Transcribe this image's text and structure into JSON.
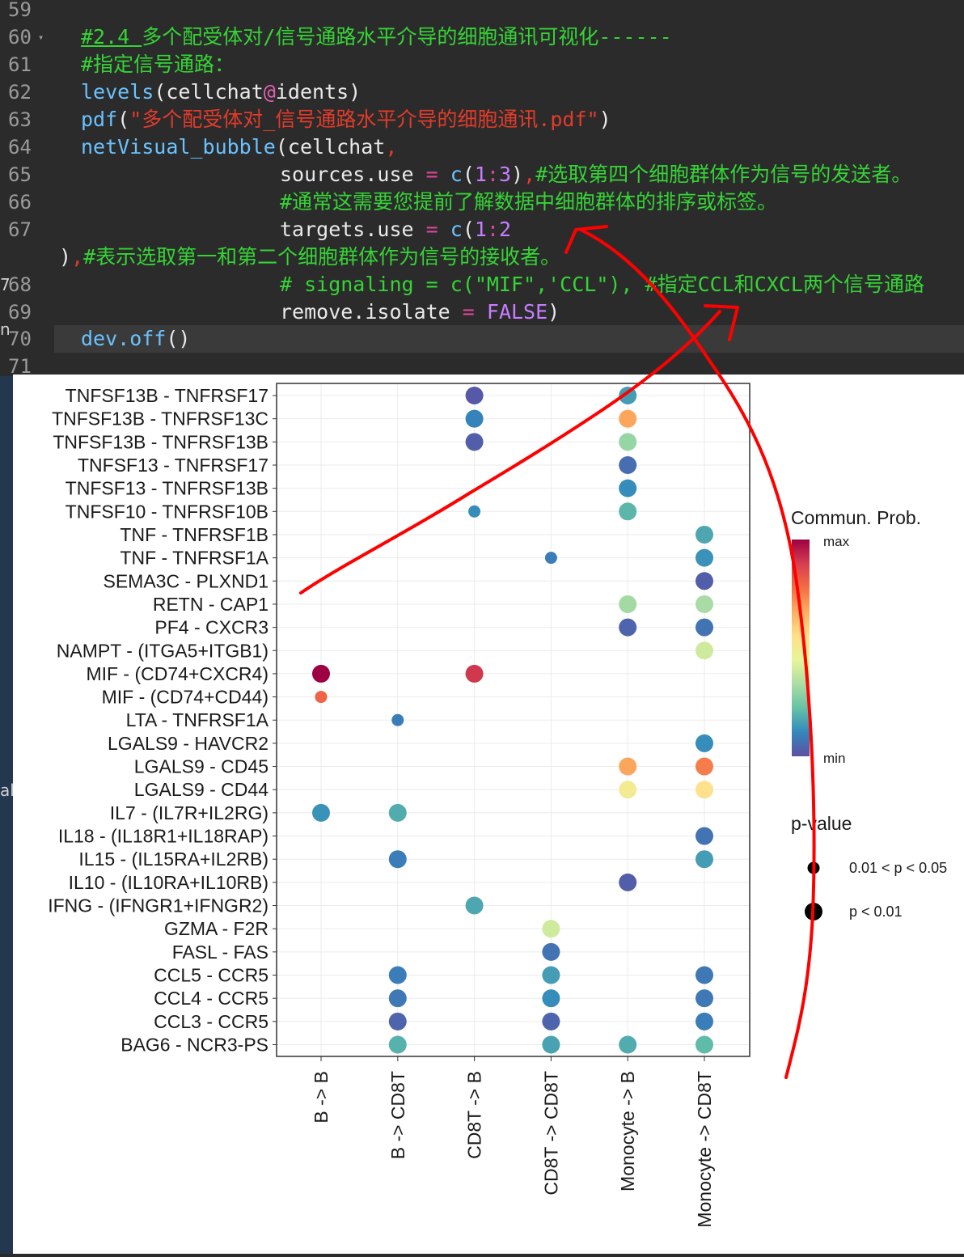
{
  "editor": {
    "lines": [
      {
        "num": "59",
        "tokens": []
      },
      {
        "num": "60",
        "fold": true,
        "tokens": [
          {
            "t": "#2.4 ",
            "c": "c-green ul"
          },
          {
            "t": "多个配受体对/信号通路水平介导的细胞通讯可视化------",
            "c": "c-green"
          }
        ]
      },
      {
        "num": "61",
        "tokens": [
          {
            "t": "#指定信号通路：",
            "c": "c-green"
          }
        ]
      },
      {
        "num": "62",
        "tokens": [
          {
            "t": "levels",
            "c": "c-fn"
          },
          {
            "t": "(",
            "c": "c-white"
          },
          {
            "t": "cellchat",
            "c": "c-white"
          },
          {
            "t": "@",
            "c": "c-at"
          },
          {
            "t": "idents",
            "c": "c-white"
          },
          {
            "t": ")",
            "c": "c-white"
          }
        ]
      },
      {
        "num": "63",
        "tokens": [
          {
            "t": "pdf",
            "c": "c-fn"
          },
          {
            "t": "(",
            "c": "c-white"
          },
          {
            "t": "\"多个配受体对_信号通路水平介导的细胞通讯.pdf\"",
            "c": "c-str"
          },
          {
            "t": ")",
            "c": "c-white"
          }
        ]
      },
      {
        "num": "64",
        "tokens": [
          {
            "t": "netVisual_bubble",
            "c": "c-fn"
          },
          {
            "t": "(",
            "c": "c-white"
          },
          {
            "t": "cellchat",
            "c": "c-white"
          },
          {
            "t": ",",
            "c": "c-str"
          }
        ]
      },
      {
        "num": "65",
        "indent": true,
        "tokens": [
          {
            "t": "sources.use ",
            "c": "c-white"
          },
          {
            "t": "=",
            "c": "c-op"
          },
          {
            "t": " ",
            "c": "c-white"
          },
          {
            "t": "c",
            "c": "c-fn"
          },
          {
            "t": "(",
            "c": "c-white"
          },
          {
            "t": "1",
            "c": "c-num"
          },
          {
            "t": ":",
            "c": "c-op"
          },
          {
            "t": "3",
            "c": "c-num"
          },
          {
            "t": ")",
            "c": "c-white"
          },
          {
            "t": ",",
            "c": "c-str"
          },
          {
            "t": "#选取第四个细胞群体作为信号的发送者。",
            "c": "c-green"
          }
        ]
      },
      {
        "num": "66",
        "indent": true,
        "tokens": [
          {
            "t": "#通常这需要您提前了解数据中细胞群体的排序或标签。",
            "c": "c-green"
          }
        ]
      },
      {
        "num": "67",
        "indent": true,
        "tokens": [
          {
            "t": "targets.use ",
            "c": "c-white"
          },
          {
            "t": "=",
            "c": "c-op"
          },
          {
            "t": " ",
            "c": "c-white"
          },
          {
            "t": "c",
            "c": "c-fn"
          },
          {
            "t": "(",
            "c": "c-white"
          },
          {
            "t": "1",
            "c": "c-num"
          },
          {
            "t": ":",
            "c": "c-op"
          },
          {
            "t": "2",
            "c": "c-num"
          }
        ]
      },
      {
        "num": "",
        "wrap": true,
        "tokens": [
          {
            "t": ")",
            "c": "c-white"
          },
          {
            "t": ",",
            "c": "c-str"
          },
          {
            "t": "#表示选取第一和第二个细胞群体作为信号的接收者。",
            "c": "c-green"
          }
        ]
      },
      {
        "num": "68",
        "indent": true,
        "tokens": [
          {
            "t": "# signaling = c(\"MIF\",'CCL\"), #指定CCL和CXCL两个信号通路",
            "c": "c-green"
          }
        ]
      },
      {
        "num": "69",
        "indent": true,
        "tokens": [
          {
            "t": "remove.isolate ",
            "c": "c-white"
          },
          {
            "t": "=",
            "c": "c-op"
          },
          {
            "t": " ",
            "c": "c-white"
          },
          {
            "t": "FALSE",
            "c": "c-num"
          },
          {
            "t": ")",
            "c": "c-white"
          }
        ]
      },
      {
        "num": "70",
        "tokens": [
          {
            "t": "dev.off",
            "c": "c-fn"
          },
          {
            "t": "()",
            "c": "c-white"
          }
        ]
      },
      {
        "num": "71",
        "tokens": []
      }
    ]
  },
  "left_strip_fragments": [
    "7",
    "n",
    "al"
  ],
  "chart_data": {
    "type": "scatter",
    "title": "",
    "xlabel": "",
    "ylabel": "",
    "x_categories": [
      "B -> B",
      "B -> CD8T",
      "CD8T -> B",
      "CD8T -> CD8T",
      "Monocyte -> B",
      "Monocyte -> CD8T"
    ],
    "y_categories": [
      "TNFSF13B - TNFRSF17",
      "TNFSF13B - TNFRSF13C",
      "TNFSF13B - TNFRSF13B",
      "TNFSF13 - TNFRSF17",
      "TNFSF13 - TNFRSF13B",
      "TNFSF10 - TNFRSF10B",
      "TNF - TNFRSF1B",
      "TNF - TNFRSF1A",
      "SEMA3C - PLXND1",
      "RETN - CAP1",
      "PF4 - CXCR3",
      "NAMPT - (ITGA5+ITGB1)",
      "MIF - (CD74+CXCR4)",
      "MIF - (CD74+CD44)",
      "LTA - TNFRSF1A",
      "LGALS9 - HAVCR2",
      "LGALS9 - CD45",
      "LGALS9 - CD44",
      "IL7 - (IL7R+IL2RG)",
      "IL18 - (IL18R1+IL18RAP)",
      "IL15 - (IL15RA+IL2RB)",
      "IL10 - (IL10RA+IL10RB)",
      "IFNG - (IFNGR1+IFNGR2)",
      "GZMA - F2R",
      "FASL - FAS",
      "CCL5 - CCR5",
      "CCL4 - CCR5",
      "CCL3 - CCR5",
      "BAG6 - NCR3-PS"
    ],
    "points": [
      {
        "x": "CD8T -> B",
        "y": "TNFSF13B - TNFRSF17",
        "prob": 0.02,
        "p": "p < 0.01"
      },
      {
        "x": "Monocyte -> B",
        "y": "TNFSF13B - TNFRSF17",
        "prob": 0.15,
        "p": "p < 0.01"
      },
      {
        "x": "CD8T -> B",
        "y": "TNFSF13B - TNFRSF13C",
        "prob": 0.1,
        "p": "p < 0.01"
      },
      {
        "x": "Monocyte -> B",
        "y": "TNFSF13B - TNFRSF13C",
        "prob": 0.68,
        "p": "p < 0.01"
      },
      {
        "x": "CD8T -> B",
        "y": "TNFSF13B - TNFRSF13B",
        "prob": 0.03,
        "p": "p < 0.01"
      },
      {
        "x": "Monocyte -> B",
        "y": "TNFSF13B - TNFRSF13B",
        "prob": 0.3,
        "p": "p < 0.01"
      },
      {
        "x": "Monocyte -> B",
        "y": "TNFSF13 - TNFRSF17",
        "prob": 0.06,
        "p": "p < 0.01"
      },
      {
        "x": "Monocyte -> B",
        "y": "TNFSF13 - TNFRSF13B",
        "prob": 0.12,
        "p": "p < 0.01"
      },
      {
        "x": "CD8T -> B",
        "y": "TNFSF10 - TNFRSF10B",
        "prob": 0.12,
        "p": "0.01 < p < 0.05"
      },
      {
        "x": "Monocyte -> B",
        "y": "TNFSF10 - TNFRSF10B",
        "prob": 0.2,
        "p": "p < 0.01"
      },
      {
        "x": "Monocyte -> CD8T",
        "y": "TNF - TNFRSF1B",
        "prob": 0.17,
        "p": "p < 0.01"
      },
      {
        "x": "CD8T -> CD8T",
        "y": "TNF - TNFRSF1A",
        "prob": 0.09,
        "p": "0.01 < p < 0.05"
      },
      {
        "x": "Monocyte -> CD8T",
        "y": "TNF - TNFRSF1A",
        "prob": 0.13,
        "p": "p < 0.01"
      },
      {
        "x": "Monocyte -> CD8T",
        "y": "SEMA3C - PLXND1",
        "prob": 0.03,
        "p": "p < 0.01"
      },
      {
        "x": "Monocyte -> B",
        "y": "RETN - CAP1",
        "prob": 0.32,
        "p": "p < 0.01"
      },
      {
        "x": "Monocyte -> CD8T",
        "y": "RETN - CAP1",
        "prob": 0.33,
        "p": "p < 0.01"
      },
      {
        "x": "Monocyte -> B",
        "y": "PF4 - CXCR3",
        "prob": 0.04,
        "p": "p < 0.01"
      },
      {
        "x": "Monocyte -> CD8T",
        "y": "PF4 - CXCR3",
        "prob": 0.07,
        "p": "p < 0.01"
      },
      {
        "x": "Monocyte -> CD8T",
        "y": "NAMPT - (ITGA5+ITGB1)",
        "prob": 0.4,
        "p": "p < 0.01"
      },
      {
        "x": "B -> B",
        "y": "MIF - (CD74+CXCR4)",
        "prob": 1.0,
        "p": "p < 0.01"
      },
      {
        "x": "CD8T -> B",
        "y": "MIF - (CD74+CXCR4)",
        "prob": 0.9,
        "p": "p < 0.01"
      },
      {
        "x": "B -> B",
        "y": "MIF - (CD74+CD44)",
        "prob": 0.8,
        "p": "0.01 < p < 0.05"
      },
      {
        "x": "B -> CD8T",
        "y": "LTA - TNFRSF1A",
        "prob": 0.09,
        "p": "0.01 < p < 0.05"
      },
      {
        "x": "Monocyte -> CD8T",
        "y": "LGALS9 - HAVCR2",
        "prob": 0.12,
        "p": "p < 0.01"
      },
      {
        "x": "Monocyte -> B",
        "y": "LGALS9 - CD45",
        "prob": 0.68,
        "p": "p < 0.01"
      },
      {
        "x": "Monocyte -> CD8T",
        "y": "LGALS9 - CD45",
        "prob": 0.75,
        "p": "p < 0.01"
      },
      {
        "x": "Monocyte -> B",
        "y": "LGALS9 - CD44",
        "prob": 0.5,
        "p": "p < 0.01"
      },
      {
        "x": "Monocyte -> CD8T",
        "y": "LGALS9 - CD44",
        "prob": 0.55,
        "p": "p < 0.01"
      },
      {
        "x": "B -> B",
        "y": "IL7 - (IL7R+IL2RG)",
        "prob": 0.13,
        "p": "p < 0.01"
      },
      {
        "x": "B -> CD8T",
        "y": "IL7 - (IL7R+IL2RG)",
        "prob": 0.18,
        "p": "p < 0.01"
      },
      {
        "x": "Monocyte -> CD8T",
        "y": "IL18 - (IL18R1+IL18RAP)",
        "prob": 0.07,
        "p": "p < 0.01"
      },
      {
        "x": "B -> CD8T",
        "y": "IL15 - (IL15RA+IL2RB)",
        "prob": 0.09,
        "p": "p < 0.01"
      },
      {
        "x": "Monocyte -> CD8T",
        "y": "IL15 - (IL15RA+IL2RB)",
        "prob": 0.15,
        "p": "p < 0.01"
      },
      {
        "x": "Monocyte -> B",
        "y": "IL10 - (IL10RA+IL10RB)",
        "prob": 0.03,
        "p": "p < 0.01"
      },
      {
        "x": "CD8T -> B",
        "y": "IFNG - (IFNGR1+IFNGR2)",
        "prob": 0.17,
        "p": "p < 0.01"
      },
      {
        "x": "CD8T -> CD8T",
        "y": "GZMA - F2R",
        "prob": 0.4,
        "p": "p < 0.01"
      },
      {
        "x": "CD8T -> CD8T",
        "y": "FASL - FAS",
        "prob": 0.07,
        "p": "p < 0.01"
      },
      {
        "x": "B -> CD8T",
        "y": "CCL5 - CCR5",
        "prob": 0.09,
        "p": "p < 0.01"
      },
      {
        "x": "CD8T -> CD8T",
        "y": "CCL5 - CCR5",
        "prob": 0.15,
        "p": "p < 0.01"
      },
      {
        "x": "Monocyte -> CD8T",
        "y": "CCL5 - CCR5",
        "prob": 0.08,
        "p": "p < 0.01"
      },
      {
        "x": "B -> CD8T",
        "y": "CCL4 - CCR5",
        "prob": 0.08,
        "p": "p < 0.01"
      },
      {
        "x": "CD8T -> CD8T",
        "y": "CCL4 - CCR5",
        "prob": 0.12,
        "p": "p < 0.01"
      },
      {
        "x": "Monocyte -> CD8T",
        "y": "CCL4 - CCR5",
        "prob": 0.08,
        "p": "p < 0.01"
      },
      {
        "x": "B -> CD8T",
        "y": "CCL3 - CCR5",
        "prob": 0.04,
        "p": "p < 0.01"
      },
      {
        "x": "CD8T -> CD8T",
        "y": "CCL3 - CCR5",
        "prob": 0.04,
        "p": "p < 0.01"
      },
      {
        "x": "Monocyte -> CD8T",
        "y": "CCL3 - CCR5",
        "prob": 0.09,
        "p": "p < 0.01"
      },
      {
        "x": "B -> CD8T",
        "y": "BAG6 - NCR3-PS",
        "prob": 0.19,
        "p": "p < 0.01"
      },
      {
        "x": "CD8T -> CD8T",
        "y": "BAG6 - NCR3-PS",
        "prob": 0.16,
        "p": "p < 0.01"
      },
      {
        "x": "Monocyte -> B",
        "y": "BAG6 - NCR3-PS",
        "prob": 0.18,
        "p": "p < 0.01"
      },
      {
        "x": "Monocyte -> CD8T",
        "y": "BAG6 - NCR3-PS",
        "prob": 0.21,
        "p": "p < 0.01"
      }
    ],
    "colorbar": {
      "title": "Commun. Prob.",
      "max_label": "max",
      "min_label": "min",
      "colors": [
        "#5e4fa2",
        "#3288bd",
        "#66c2a5",
        "#abdda4",
        "#e6f598",
        "#fee08b",
        "#fdae61",
        "#f46d43",
        "#d53e4f",
        "#9e0142"
      ]
    },
    "size_legend": {
      "title": "p-value",
      "items": [
        "0.01 < p < 0.05",
        "p < 0.01"
      ]
    },
    "grid": true,
    "legend_position": "right"
  },
  "annotation_color": "#ff0000"
}
